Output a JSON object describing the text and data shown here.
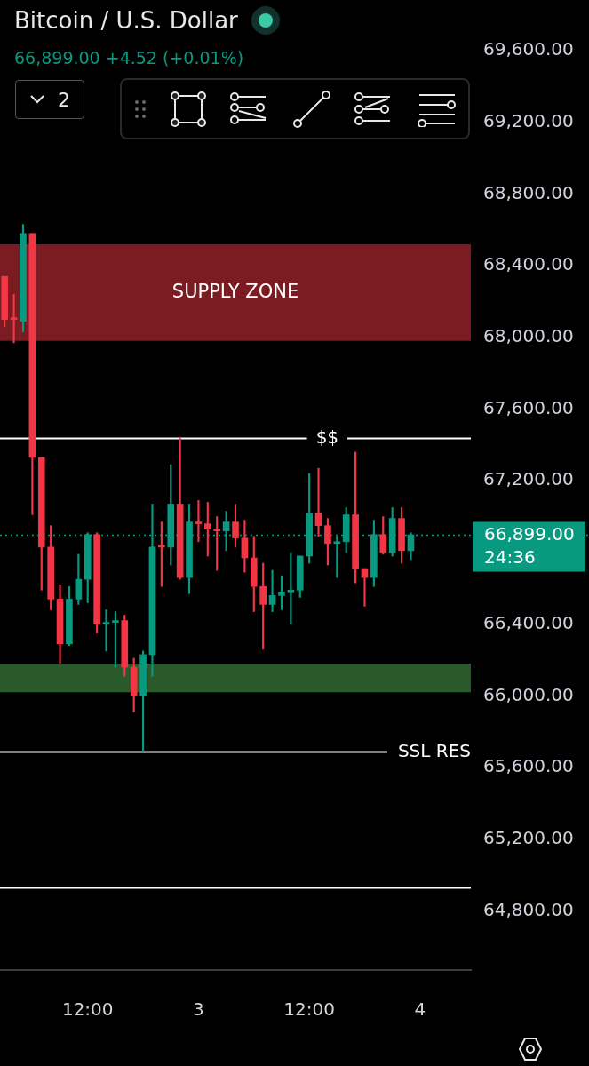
{
  "chart_data": {
    "type": "candlestick",
    "title": "Bitcoin / U.S. Dollar",
    "subtitle": "66,899.00 +4.52 (+0.01%)",
    "categories": [
      null,
      null,
      null,
      null,
      null,
      null,
      null,
      null,
      null,
      "12:00",
      null,
      null,
      null,
      null,
      null,
      null,
      null,
      null,
      null,
      null,
      null,
      "3",
      null,
      null,
      null,
      null,
      null,
      null,
      null,
      null,
      null,
      null,
      null,
      "12:00",
      null,
      null,
      null,
      null,
      null,
      null,
      null,
      null,
      null,
      null,
      null,
      "4",
      null,
      null,
      null,
      null,
      null
    ],
    "ohlc": [
      [
        68340,
        68340,
        68060,
        68100
      ],
      [
        68110,
        68240,
        67970,
        68100
      ],
      [
        68090,
        68630,
        68030,
        68580
      ],
      [
        68580,
        68580,
        67010,
        67330
      ],
      [
        67330,
        67330,
        66590,
        66830
      ],
      [
        66830,
        66950,
        66480,
        66540
      ],
      [
        66540,
        66620,
        66180,
        66290
      ],
      [
        66290,
        66610,
        66280,
        66540
      ],
      [
        66540,
        66790,
        66510,
        66650
      ],
      [
        66650,
        66910,
        66520,
        66900
      ],
      [
        66900,
        66910,
        66350,
        66400
      ],
      [
        66400,
        66480,
        66250,
        66410
      ],
      [
        66410,
        66470,
        66160,
        66420
      ],
      [
        66420,
        66450,
        66110,
        66160
      ],
      [
        66160,
        66210,
        65910,
        66000
      ],
      [
        66000,
        66250,
        65690,
        66230
      ],
      [
        66230,
        67070,
        66110,
        66830
      ],
      [
        66840,
        66970,
        66610,
        66830
      ],
      [
        66830,
        67290,
        66730,
        67070
      ],
      [
        67070,
        67440,
        66650,
        66660
      ],
      [
        66660,
        67070,
        66570,
        66970
      ],
      [
        66970,
        67090,
        66860,
        66960
      ],
      [
        66960,
        67080,
        66780,
        66930
      ],
      [
        66930,
        67000,
        66700,
        66920
      ],
      [
        66920,
        67030,
        66810,
        66970
      ],
      [
        66970,
        67070,
        66830,
        66880
      ],
      [
        66880,
        66980,
        66690,
        66770
      ],
      [
        66770,
        66890,
        66470,
        66610
      ],
      [
        66610,
        66740,
        66260,
        66510
      ],
      [
        66510,
        66700,
        66470,
        66560
      ],
      [
        66560,
        66670,
        66480,
        66580
      ],
      [
        66580,
        66800,
        66400,
        66590
      ],
      [
        66590,
        66780,
        66550,
        66780
      ],
      [
        66780,
        67240,
        66740,
        67020
      ],
      [
        67020,
        67270,
        66890,
        66950
      ],
      [
        66950,
        66990,
        66730,
        66850
      ],
      [
        66850,
        66890,
        66660,
        66860
      ],
      [
        66860,
        67050,
        66800,
        67010
      ],
      [
        67010,
        67360,
        66630,
        66710
      ],
      [
        66710,
        66710,
        66500,
        66660
      ],
      [
        66660,
        66980,
        66610,
        66900
      ],
      [
        66900,
        67000,
        66790,
        66800
      ],
      [
        66800,
        67050,
        66780,
        66990
      ],
      [
        66990,
        67050,
        66740,
        66810
      ],
      [
        66810,
        66910,
        66760,
        66899
      ],
      null,
      null,
      null,
      null,
      null,
      null
    ],
    "colors": [
      "#f23645",
      "#f23645",
      "#089981",
      "#f23645",
      "#f23645",
      "#f23645",
      "#f23645",
      "#089981",
      "#089981",
      "#089981",
      "#f23645",
      "#089981",
      "#089981",
      "#f23645",
      "#f23645",
      "#089981",
      "#089981",
      "#f23645",
      "#089981",
      "#f23645",
      "#089981",
      "#f23645",
      "#f23645",
      "#f23645",
      "#089981",
      "#f23645",
      "#f23645",
      "#f23645",
      "#f23645",
      "#089981",
      "#089981",
      "#089981",
      "#089981",
      "#089981",
      "#f23645",
      "#f23645",
      "#089981",
      "#089981",
      "#f23645",
      "#f23645",
      "#089981",
      "#f23645",
      "#089981",
      "#f23645",
      "#089981",
      null,
      null,
      null,
      null,
      null,
      null
    ],
    "ylim": [
      64470,
      69600
    ],
    "yticks": [
      {
        "value": 64800,
        "label": "64,800.00"
      },
      {
        "value": 65200,
        "label": "65,200.00"
      },
      {
        "value": 65600,
        "label": "65,600.00"
      },
      {
        "value": 66000,
        "label": "66,000.00"
      },
      {
        "value": 66400,
        "label": "66,400.00"
      },
      {
        "value": 67200,
        "label": "67,200.00"
      },
      {
        "value": 67600,
        "label": "67,600.00"
      },
      {
        "value": 68000,
        "label": "68,000.00"
      },
      {
        "value": 68400,
        "label": "68,400.00"
      },
      {
        "value": 68800,
        "label": "68,800.00"
      },
      {
        "value": 69200,
        "label": "69,200.00"
      },
      {
        "value": 69600,
        "label": "69,600.00"
      }
    ],
    "bands": [
      {
        "axis": "y",
        "from": 67980,
        "to": 68520,
        "label": "SUPPLY ZONE",
        "color": "#7a1c22"
      },
      {
        "axis": "y",
        "from": 66020,
        "to": 66180,
        "color": "#2b5a2a"
      }
    ],
    "ref_lines": [
      {
        "axis": "y",
        "value": 67440,
        "label": "$$",
        "color": "#ffffff"
      },
      {
        "axis": "y",
        "value": 65690,
        "label": "SSL RES",
        "color": "#ffffff"
      },
      {
        "axis": "y",
        "value": 64930,
        "color": "#ffffff"
      },
      {
        "axis": "y",
        "value": 66899,
        "label": "66,899.00",
        "color": "#089981",
        "line_style": "dotted"
      }
    ],
    "annotations": [
      "2",
      {
        "text": "24:36",
        "y": 66899
      }
    ],
    "grid": false,
    "legend": false
  }
}
